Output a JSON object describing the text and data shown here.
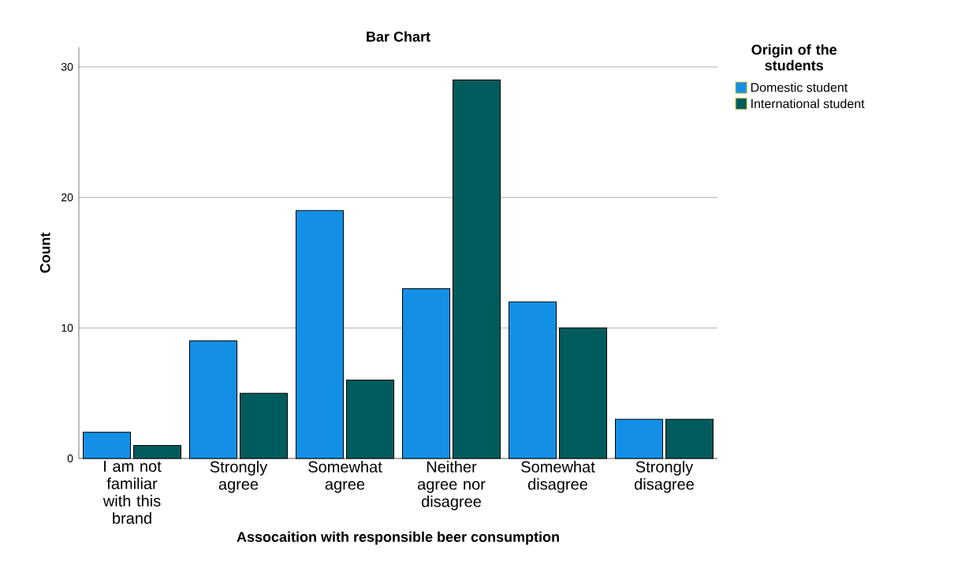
{
  "chart_data": {
    "type": "bar",
    "title": "Bar Chart",
    "xlabel": "Assocaition with responsible beer consumption",
    "ylabel": "Count",
    "legend_title": "Origin of the students",
    "categories": [
      "I am not familiar with this brand",
      "Strongly agree",
      "Somewhat agree",
      "Neither agree nor disagree",
      "Somewhat disagree",
      "Strongly disagree"
    ],
    "series": [
      {
        "name": "Domestic student",
        "color": "#1390e6",
        "values": [
          2,
          9,
          19,
          13,
          12,
          3
        ]
      },
      {
        "name": "International student",
        "color": "#005c5c",
        "values": [
          1,
          5,
          6,
          29,
          10,
          3
        ]
      }
    ],
    "ylim": [
      0,
      31.5
    ],
    "yticks": [
      0,
      10,
      20,
      30
    ],
    "grid": "y",
    "legend": "right"
  }
}
